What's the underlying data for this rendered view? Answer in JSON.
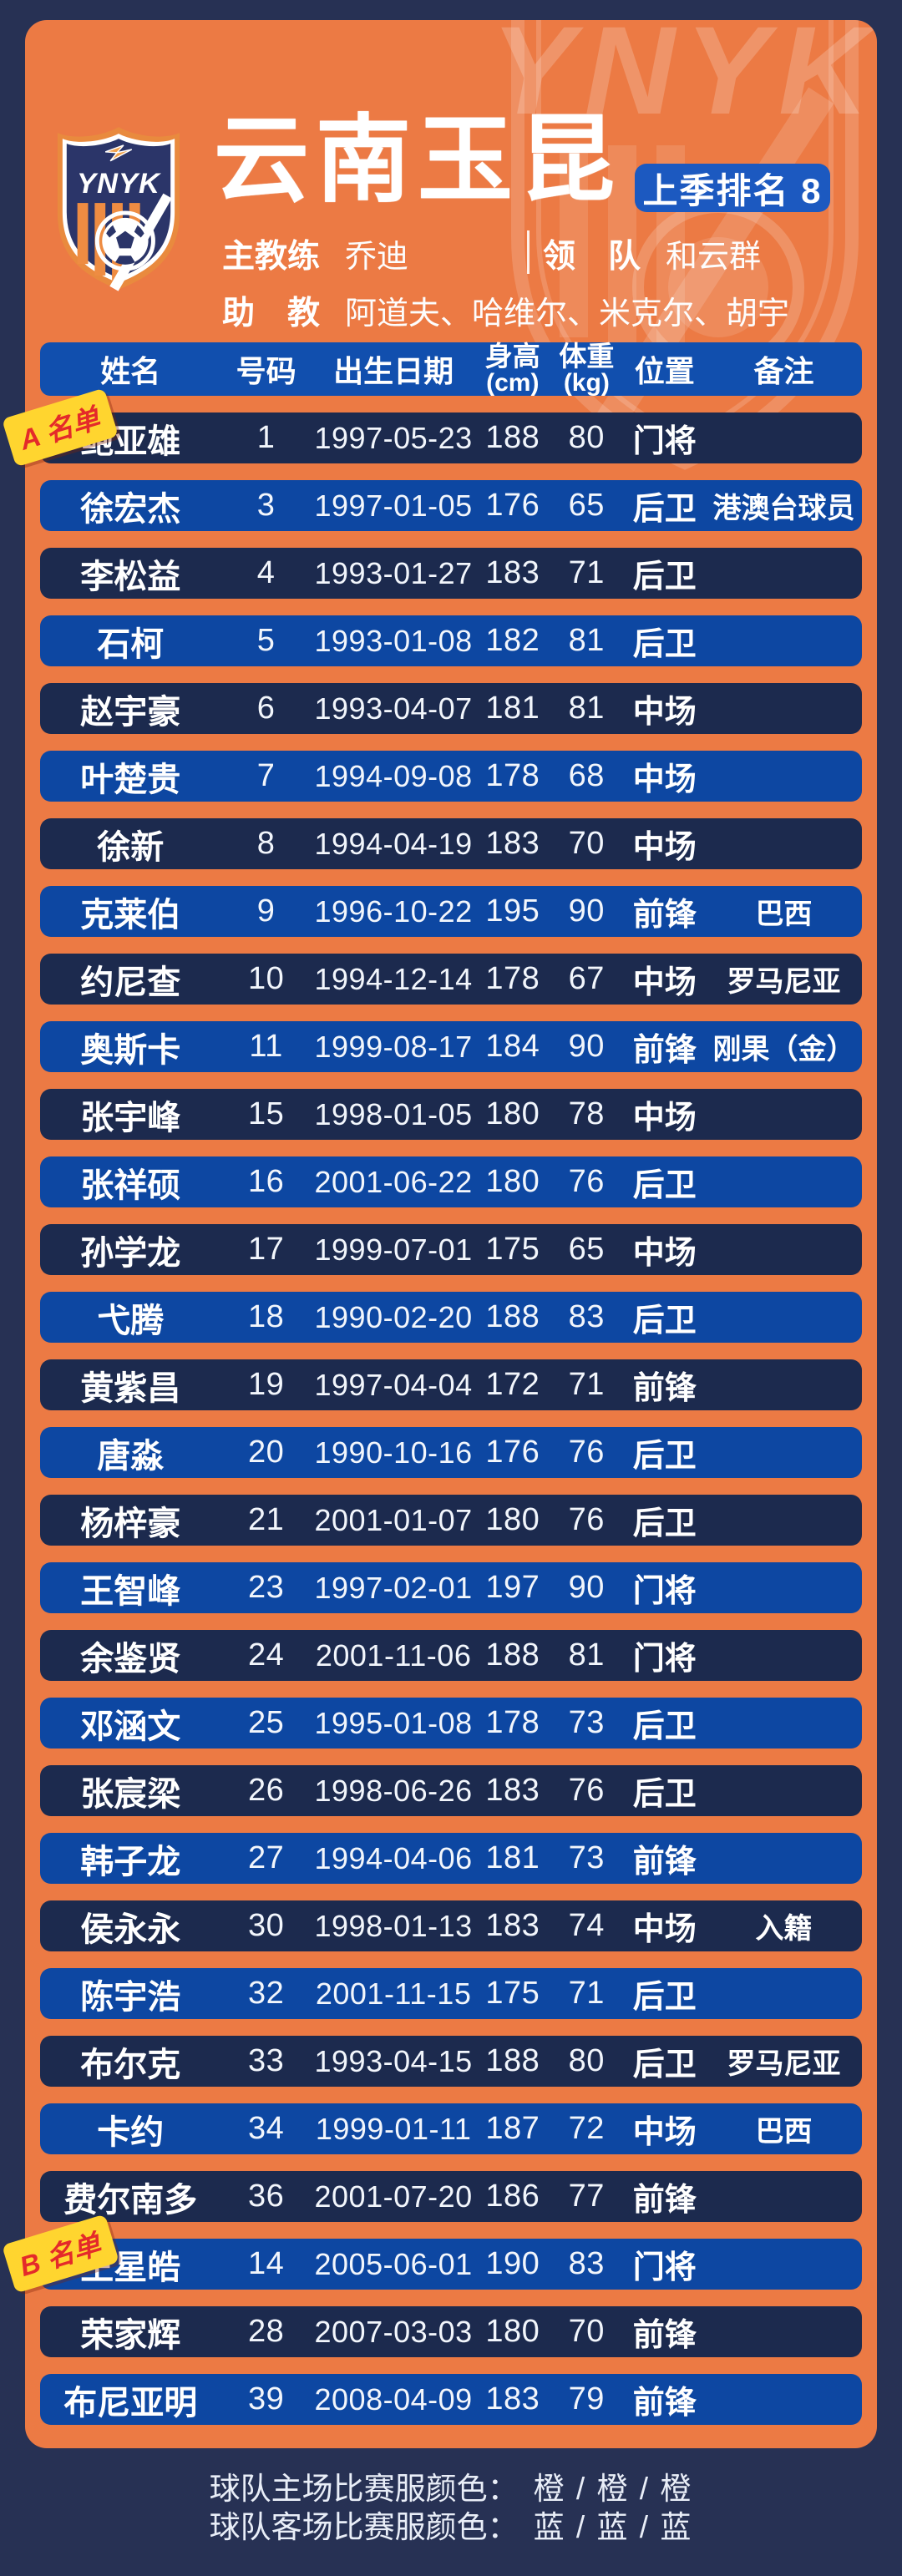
{
  "page": {
    "title": "云南玉昆",
    "rank_badge": "上季排名 8",
    "logo_text": "YNYK",
    "watermark_text": "YNYK"
  },
  "staff": {
    "head_coach_label": "主教练",
    "head_coach": "乔迪",
    "manager_label": "领　队",
    "manager": "和云群",
    "assistant_label": "助　教",
    "assistants": "阿道夫、哈维尔、米克尔、胡宇"
  },
  "table": {
    "headers": {
      "name": "姓名",
      "number": "号码",
      "dob": "出生日期",
      "height_l1": "身高",
      "height_l2": "(cm)",
      "weight_l1": "体重",
      "weight_l2": "(kg)",
      "position": "位置",
      "remark": "备注"
    },
    "rows": [
      {
        "name": "鲍亚雄",
        "number": "1",
        "dob": "1997-05-23",
        "height": "188",
        "weight": "80",
        "position": "门将",
        "remark": "",
        "tag": "A 名单"
      },
      {
        "name": "徐宏杰",
        "number": "3",
        "dob": "1997-01-05",
        "height": "176",
        "weight": "65",
        "position": "后卫",
        "remark": "港澳台球员"
      },
      {
        "name": "李松益",
        "number": "4",
        "dob": "1993-01-27",
        "height": "183",
        "weight": "71",
        "position": "后卫",
        "remark": ""
      },
      {
        "name": "石柯",
        "number": "5",
        "dob": "1993-01-08",
        "height": "182",
        "weight": "81",
        "position": "后卫",
        "remark": ""
      },
      {
        "name": "赵宇豪",
        "number": "6",
        "dob": "1993-04-07",
        "height": "181",
        "weight": "81",
        "position": "中场",
        "remark": ""
      },
      {
        "name": "叶楚贵",
        "number": "7",
        "dob": "1994-09-08",
        "height": "178",
        "weight": "68",
        "position": "中场",
        "remark": ""
      },
      {
        "name": "徐新",
        "number": "8",
        "dob": "1994-04-19",
        "height": "183",
        "weight": "70",
        "position": "中场",
        "remark": ""
      },
      {
        "name": "克莱伯",
        "number": "9",
        "dob": "1996-10-22",
        "height": "195",
        "weight": "90",
        "position": "前锋",
        "remark": "巴西"
      },
      {
        "name": "约尼查",
        "number": "10",
        "dob": "1994-12-14",
        "height": "178",
        "weight": "67",
        "position": "中场",
        "remark": "罗马尼亚"
      },
      {
        "name": "奥斯卡",
        "number": "11",
        "dob": "1999-08-17",
        "height": "184",
        "weight": "90",
        "position": "前锋",
        "remark": "刚果（金）"
      },
      {
        "name": "张宇峰",
        "number": "15",
        "dob": "1998-01-05",
        "height": "180",
        "weight": "78",
        "position": "中场",
        "remark": ""
      },
      {
        "name": "张祥硕",
        "number": "16",
        "dob": "2001-06-22",
        "height": "180",
        "weight": "76",
        "position": "后卫",
        "remark": ""
      },
      {
        "name": "孙学龙",
        "number": "17",
        "dob": "1999-07-01",
        "height": "175",
        "weight": "65",
        "position": "中场",
        "remark": ""
      },
      {
        "name": "弋腾",
        "number": "18",
        "dob": "1990-02-20",
        "height": "188",
        "weight": "83",
        "position": "后卫",
        "remark": ""
      },
      {
        "name": "黄紫昌",
        "number": "19",
        "dob": "1997-04-04",
        "height": "172",
        "weight": "71",
        "position": "前锋",
        "remark": ""
      },
      {
        "name": "唐淼",
        "number": "20",
        "dob": "1990-10-16",
        "height": "176",
        "weight": "76",
        "position": "后卫",
        "remark": ""
      },
      {
        "name": "杨梓豪",
        "number": "21",
        "dob": "2001-01-07",
        "height": "180",
        "weight": "76",
        "position": "后卫",
        "remark": ""
      },
      {
        "name": "王智峰",
        "number": "23",
        "dob": "1997-02-01",
        "height": "197",
        "weight": "90",
        "position": "门将",
        "remark": ""
      },
      {
        "name": "余鉴贤",
        "number": "24",
        "dob": "2001-11-06",
        "height": "188",
        "weight": "81",
        "position": "门将",
        "remark": ""
      },
      {
        "name": "邓涵文",
        "number": "25",
        "dob": "1995-01-08",
        "height": "178",
        "weight": "73",
        "position": "后卫",
        "remark": ""
      },
      {
        "name": "张宸梁",
        "number": "26",
        "dob": "1998-06-26",
        "height": "183",
        "weight": "76",
        "position": "后卫",
        "remark": ""
      },
      {
        "name": "韩子龙",
        "number": "27",
        "dob": "1994-04-06",
        "height": "181",
        "weight": "73",
        "position": "前锋",
        "remark": ""
      },
      {
        "name": "侯永永",
        "number": "30",
        "dob": "1998-01-13",
        "height": "183",
        "weight": "74",
        "position": "中场",
        "remark": "入籍"
      },
      {
        "name": "陈宇浩",
        "number": "32",
        "dob": "2001-11-15",
        "height": "175",
        "weight": "71",
        "position": "后卫",
        "remark": ""
      },
      {
        "name": "布尔克",
        "number": "33",
        "dob": "1993-04-15",
        "height": "188",
        "weight": "80",
        "position": "后卫",
        "remark": "罗马尼亚"
      },
      {
        "name": "卡约",
        "number": "34",
        "dob": "1999-01-11",
        "height": "187",
        "weight": "72",
        "position": "中场",
        "remark": "巴西"
      },
      {
        "name": "费尔南多",
        "number": "36",
        "dob": "2001-07-20",
        "height": "186",
        "weight": "77",
        "position": "前锋",
        "remark": ""
      },
      {
        "name": "王星皓",
        "number": "14",
        "dob": "2005-06-01",
        "height": "190",
        "weight": "83",
        "position": "门将",
        "remark": "",
        "tag": "B 名单"
      },
      {
        "name": "荣家辉",
        "number": "28",
        "dob": "2007-03-03",
        "height": "180",
        "weight": "70",
        "position": "前锋",
        "remark": ""
      },
      {
        "name": "布尼亚明",
        "number": "39",
        "dob": "2008-04-09",
        "height": "183",
        "weight": "79",
        "position": "前锋",
        "remark": ""
      }
    ]
  },
  "footer": {
    "home_kit_label": "球队主场比赛服颜色：",
    "home_kit_colors": "橙 / 橙 / 橙",
    "away_kit_label": "球队客场比赛服颜色：",
    "away_kit_colors": "蓝 / 蓝 / 蓝"
  },
  "colors": {
    "background_navy": "#273154",
    "panel_orange": "#ec7a44",
    "row_dark_navy": "#1c2a4e",
    "row_bright_blue": "#0d47a2",
    "header_blue": "#114fae",
    "badge_blue": "#1c59c0",
    "tag_yellow": "#ffd52f",
    "tag_red": "#e42a2a",
    "text_white": "#ffffff"
  }
}
